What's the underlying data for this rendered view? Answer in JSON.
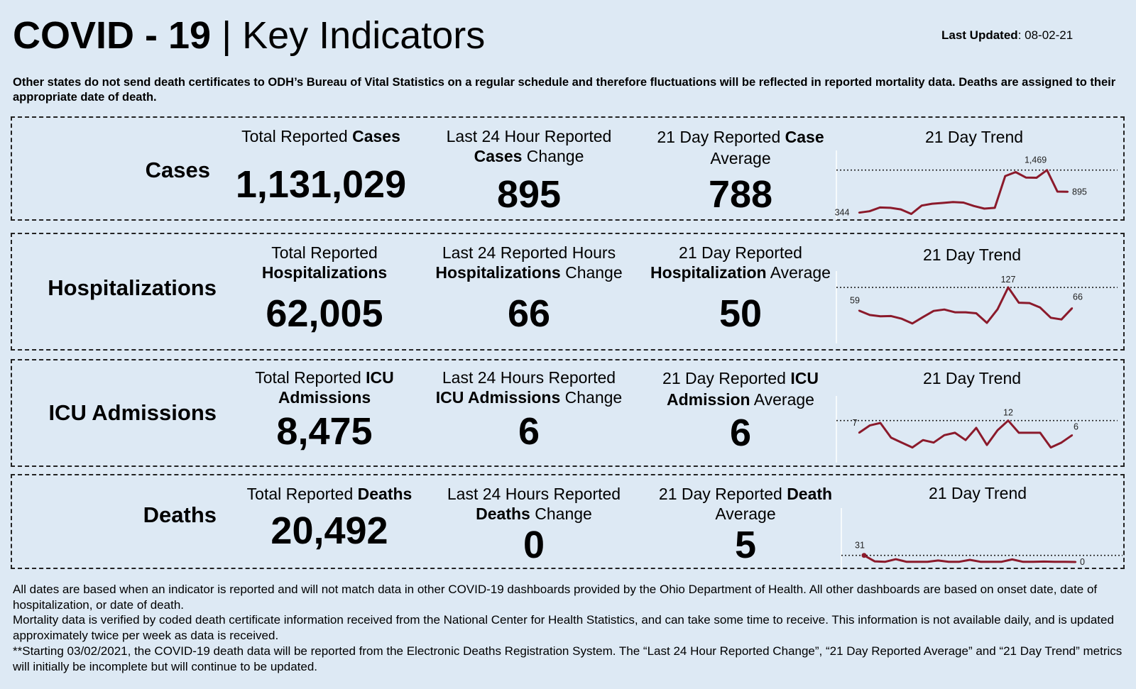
{
  "header": {
    "title_bold": "COVID - 19",
    "title_sep": " | ",
    "title_rest": "Key Indicators",
    "updated_label": "Last Updated",
    "updated_value": ": 08-02-21"
  },
  "note": "Other states do not send death certificates to ODH’s Bureau of Vital Statistics on a regular schedule and therefore fluctuations will be reflected in reported mortality data. Deaths are assigned to their appropriate date of death.",
  "colors": {
    "line": "#8b1a2b",
    "background": "#dde9f4"
  },
  "trend_title": "21 Day Trend",
  "rows": {
    "cases": {
      "label": "Cases",
      "total": {
        "pre": "Total Reported ",
        "bold": "Cases",
        "value": "1,131,029"
      },
      "change": {
        "l1": "Last 24 Hour Reported",
        "bold": "Cases",
        "rest": " Change",
        "value": "895"
      },
      "average": {
        "l1a": "21 Day Reported ",
        "l1b": "Case",
        "l2": "Average",
        "value": "788"
      }
    },
    "hosp": {
      "label": "Hospitalizations",
      "total": {
        "l1": "Total Reported",
        "bold": "Hospitalizations",
        "value": "62,005"
      },
      "change": {
        "l1": "Last 24 Reported Hours",
        "bold": "Hospitalizations",
        "rest": " Change",
        "value": "66"
      },
      "average": {
        "l1": "21 Day Reported",
        "bold": "Hospitalization",
        "rest": " Average",
        "value": "50"
      }
    },
    "icu": {
      "label": "ICU Admissions",
      "total": {
        "pre": "Total Reported ",
        "bold1": "ICU",
        "bold2": "Admissions",
        "value": "8,475"
      },
      "change": {
        "l1": "Last 24 Hours Reported",
        "bold": "ICU Admissions",
        "rest": " Change",
        "value": "6"
      },
      "average": {
        "pre": "21 Day Reported ",
        "bold1": "ICU",
        "bold2": "Admission",
        "rest": " Average",
        "value": "6"
      }
    },
    "deaths": {
      "label": "Deaths",
      "total": {
        "pre": "Total Reported ",
        "bold": "Deaths",
        "value": "20,492"
      },
      "change": {
        "l1": "Last 24 Hours Reported",
        "bold": "Deaths",
        "rest": " Change",
        "value": "0"
      },
      "average": {
        "l1a": "21 Day Reported ",
        "l1b": "Death",
        "l2": "Average",
        "value": "5"
      }
    }
  },
  "chart_data": [
    {
      "type": "line",
      "id": "cases",
      "title": "21 Day Trend",
      "x": [
        1,
        2,
        3,
        4,
        5,
        6,
        7,
        8,
        9,
        10,
        11,
        12,
        13,
        14,
        15,
        16,
        17,
        18,
        19,
        20,
        21
      ],
      "series": [
        {
          "name": "Cases",
          "values": [
            344,
            380,
            480,
            470,
            430,
            310,
            530,
            580,
            600,
            625,
            610,
            520,
            450,
            470,
            1310,
            1415,
            1270,
            1265,
            1469,
            900,
            895
          ]
        }
      ],
      "ylim": [
        300,
        1800
      ],
      "reference_line": 1469,
      "labels": {
        "first": "344",
        "max": "1,469",
        "last": "895"
      }
    },
    {
      "type": "line",
      "id": "hosp",
      "title": "21 Day Trend",
      "x": [
        1,
        2,
        3,
        4,
        5,
        6,
        7,
        8,
        9,
        10,
        11,
        12,
        13,
        14,
        15,
        16,
        17,
        18,
        19,
        20,
        21
      ],
      "series": [
        {
          "name": "Hospitalizations",
          "values": [
            59,
            46,
            42,
            43,
            35,
            21,
            40,
            58,
            62,
            54,
            54,
            51,
            23,
            63,
            127,
            82,
            81,
            68,
            38,
            33,
            66
          ]
        }
      ],
      "ylim": [
        0,
        150
      ],
      "reference_line": 127,
      "labels": {
        "first": "59",
        "max": "127",
        "last": "66"
      }
    },
    {
      "type": "line",
      "id": "icu",
      "title": "21 Day Trend",
      "x": [
        1,
        2,
        3,
        4,
        5,
        6,
        7,
        8,
        9,
        10,
        11,
        12,
        13,
        14,
        15,
        16,
        17,
        18,
        19,
        20,
        21
      ],
      "series": [
        {
          "name": "ICU Admissions",
          "values": [
            7,
            10,
            11,
            5,
            3,
            1,
            4,
            3,
            6,
            7,
            4,
            9,
            2,
            8,
            12,
            7,
            7,
            7,
            1,
            3,
            6
          ]
        }
      ],
      "ylim": [
        0,
        18
      ],
      "reference_line": 12,
      "labels": {
        "first": "7",
        "max": "12",
        "last": "6"
      }
    },
    {
      "type": "line",
      "id": "deaths",
      "title": "21 Day Trend",
      "x": [
        1,
        2,
        3,
        4,
        5,
        6,
        7,
        8,
        9,
        10,
        11,
        12,
        13,
        14,
        15,
        16,
        17,
        18,
        19,
        20,
        21
      ],
      "series": [
        {
          "name": "Deaths",
          "values": [
            31,
            3,
            1,
            13,
            1,
            1,
            1,
            7,
            1,
            1,
            10,
            1,
            1,
            1,
            12,
            1,
            1,
            2,
            1,
            1,
            0
          ]
        }
      ],
      "ylim": [
        0,
        200
      ],
      "reference_line": 31,
      "labels": {
        "first": "31",
        "max": "",
        "last": "0"
      }
    }
  ],
  "footer": {
    "p1": "All dates are based when an indicator is reported and will not match data in other COVID-19 dashboards provided by the Ohio Department of Health. All other dashboards are based on onset date, date of hospitalization, or date of death.",
    "p2": "Mortality data is verified by coded death certificate information received from the National Center for Health Statistics, and can take some time to receive. This information is not available daily, and is updated approximately twice per week as data is received.",
    "p3": "**Starting 03/02/2021, the COVID-19 death data will be reported from the Electronic Deaths Registration System. The “Last 24 Hour Reported Change”, “21 Day Reported Average” and “21 Day Trend” metrics will initially be incomplete but will continue to be updated."
  }
}
